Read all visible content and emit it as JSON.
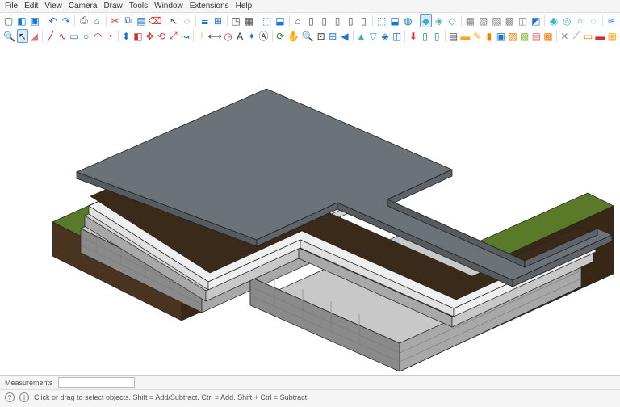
{
  "menu": {
    "items": [
      "File",
      "Edit",
      "View",
      "Camera",
      "Draw",
      "Tools",
      "Window",
      "Extensions",
      "Help"
    ]
  },
  "toolbar": {
    "row1": [
      {
        "n": "new-icon",
        "c": "#2e7d32",
        "g": "▢"
      },
      {
        "n": "open-icon",
        "c": "#1976d2",
        "g": "◧"
      },
      {
        "n": "save-icon",
        "c": "#1976d2",
        "g": "▣"
      },
      {
        "sep": true
      },
      {
        "n": "undo-icon",
        "c": "#1976d2",
        "g": "↶"
      },
      {
        "n": "redo-icon",
        "c": "#1976d2",
        "g": "↷"
      },
      {
        "sep": true
      },
      {
        "n": "print-icon",
        "c": "#555",
        "g": "⎙"
      },
      {
        "n": "model-icon",
        "c": "#1976d2",
        "g": "⌂"
      },
      {
        "sep": true
      },
      {
        "n": "cut-icon",
        "c": "#d32f2f",
        "g": "✂"
      },
      {
        "n": "copy-icon",
        "c": "#1976d2",
        "g": "⧉"
      },
      {
        "n": "paste-icon",
        "c": "#1976d2",
        "g": "▤"
      },
      {
        "n": "erase-icon",
        "c": "#d32f2f",
        "g": "⌫"
      },
      {
        "sep": true
      },
      {
        "n": "select-icon",
        "c": "#333",
        "g": "↖"
      },
      {
        "n": "lasso-icon",
        "c": "#1976d2",
        "g": "◌"
      },
      {
        "sep": true
      },
      {
        "n": "layers-icon",
        "c": "#1976d2",
        "g": "≣"
      },
      {
        "n": "tags-icon",
        "c": "#1976d2",
        "g": "⊞"
      },
      {
        "sep": true
      },
      {
        "n": "iso-icon",
        "c": "#555",
        "g": "◳"
      },
      {
        "n": "top-icon",
        "c": "#555",
        "g": "▦"
      },
      {
        "sep": true
      },
      {
        "n": "3dw-icon",
        "c": "#1976d2",
        "g": "⬚"
      },
      {
        "n": "ext-icon",
        "c": "#1976d2",
        "g": "⬓"
      },
      {
        "sep": true
      },
      {
        "n": "house-icon",
        "c": "#555",
        "g": "⌂"
      },
      {
        "n": "doc1-icon",
        "c": "#555",
        "g": "▯"
      },
      {
        "n": "doc2-icon",
        "c": "#555",
        "g": "▯"
      },
      {
        "n": "doc3-icon",
        "c": "#555",
        "g": "▯"
      },
      {
        "n": "doc4-icon",
        "c": "#555",
        "g": "▯"
      },
      {
        "n": "doc5-icon",
        "c": "#555",
        "g": "▯"
      },
      {
        "sep": true
      },
      {
        "n": "comp1-icon",
        "c": "#1976d2",
        "g": "⬚"
      },
      {
        "n": "comp2-icon",
        "c": "#1976d2",
        "g": "⬓"
      },
      {
        "n": "comp3-icon",
        "c": "#1976d2",
        "g": "◍"
      },
      {
        "sep": true
      },
      {
        "n": "solid1-icon",
        "c": "#3eb1c8",
        "g": "◆",
        "sel": true
      },
      {
        "n": "solid2-icon",
        "c": "#3eb1c8",
        "g": "◈"
      },
      {
        "n": "solid3-icon",
        "c": "#3eb1c8",
        "g": "◇"
      },
      {
        "sep": true
      },
      {
        "n": "box1-icon",
        "c": "#888",
        "g": "▦"
      },
      {
        "n": "box2-icon",
        "c": "#888",
        "g": "▧"
      },
      {
        "n": "box3-icon",
        "c": "#888",
        "g": "▨"
      },
      {
        "n": "box4-icon",
        "c": "#888",
        "g": "▩"
      },
      {
        "n": "box5-icon",
        "c": "#888",
        "g": "◫"
      },
      {
        "n": "box6-icon",
        "c": "#1976d2",
        "g": "◩"
      },
      {
        "sep": true
      },
      {
        "n": "sphere1-icon",
        "c": "#3eb1c8",
        "g": "◉"
      },
      {
        "n": "sphere2-icon",
        "c": "#3eb1c8",
        "g": "◎"
      },
      {
        "n": "sphere3-icon",
        "c": "#3eb1c8",
        "g": "○"
      },
      {
        "n": "sphere4-icon",
        "c": "#3eb1c8",
        "g": "◌"
      },
      {
        "sep": true
      },
      {
        "n": "stack-icon",
        "c": "#1976d2",
        "g": "≋"
      }
    ],
    "row2": [
      {
        "n": "zoom-icon",
        "c": "#333",
        "g": "🔍"
      },
      {
        "n": "select2-icon",
        "c": "#333",
        "g": "↖",
        "sel": true
      },
      {
        "n": "eraser-icon",
        "c": "#e57373",
        "g": "◢"
      },
      {
        "sep": true
      },
      {
        "n": "line-icon",
        "c": "#d32f2f",
        "g": "╱"
      },
      {
        "n": "freehand-icon",
        "c": "#d32f2f",
        "g": "∿"
      },
      {
        "n": "rect-icon",
        "c": "#1976d2",
        "g": "▭"
      },
      {
        "n": "circle-icon",
        "c": "#1976d2",
        "g": "○"
      },
      {
        "n": "arc-icon",
        "c": "#d32f2f",
        "g": "◠"
      },
      {
        "n": "pie-icon",
        "c": "#d32f2f",
        "g": "◔"
      },
      {
        "sep": true
      },
      {
        "n": "push-icon",
        "c": "#1976d2",
        "g": "⬍"
      },
      {
        "n": "offset-icon",
        "c": "#d32f2f",
        "g": "◧"
      },
      {
        "n": "move-icon",
        "c": "#d32f2f",
        "g": "✥"
      },
      {
        "n": "rotate-icon",
        "c": "#d32f2f",
        "g": "⟲"
      },
      {
        "n": "scale-icon",
        "c": "#d32f2f",
        "g": "⤢"
      },
      {
        "n": "followme-icon",
        "c": "#1976d2",
        "g": "↝"
      },
      {
        "sep": true
      },
      {
        "n": "tape-icon",
        "c": "#f9a825",
        "g": "⟊"
      },
      {
        "n": "dimension-icon",
        "c": "#333",
        "g": "⟷"
      },
      {
        "n": "protractor-icon",
        "c": "#d32f2f",
        "g": "◷"
      },
      {
        "n": "text-icon",
        "c": "#333",
        "g": "A"
      },
      {
        "n": "axes-icon",
        "c": "#1976d2",
        "g": "✦"
      },
      {
        "n": "3dtext-icon",
        "c": "#333",
        "g": "Ⓐ"
      },
      {
        "sep": true
      },
      {
        "n": "orbit-icon",
        "c": "#2e7d32",
        "g": "⟳"
      },
      {
        "n": "pan-icon",
        "c": "#d32f2f",
        "g": "✋"
      },
      {
        "n": "zoom2-icon",
        "c": "#333",
        "g": "🔍"
      },
      {
        "n": "zoomwin-icon",
        "c": "#333",
        "g": "⊡"
      },
      {
        "n": "zoomext-icon",
        "c": "#1976d2",
        "g": "⊞"
      },
      {
        "n": "prev-icon",
        "c": "#1976d2",
        "g": "◀"
      },
      {
        "sep": true
      },
      {
        "n": "position-icon",
        "c": "#3eb1c8",
        "g": "▲"
      },
      {
        "n": "walk-icon",
        "c": "#3eb1c8",
        "g": "▽"
      },
      {
        "n": "look-icon",
        "c": "#1976d2",
        "g": "◈"
      },
      {
        "n": "section-icon",
        "c": "#1976d2",
        "g": "◫"
      },
      {
        "sep": true
      },
      {
        "n": "getmodels-icon",
        "c": "#d32f2f",
        "g": "⬇"
      },
      {
        "n": "share-icon",
        "c": "#1976d2",
        "g": "▯"
      },
      {
        "n": "upload-icon",
        "c": "#1976d2",
        "g": "▯"
      },
      {
        "sep": true
      },
      {
        "n": "outliner-icon",
        "c": "#555",
        "g": "▤"
      },
      {
        "n": "ruler-icon",
        "c": "#f9a825",
        "g": "▬"
      },
      {
        "n": "pencil2-icon",
        "c": "#f9a825",
        "g": "✎"
      },
      {
        "n": "paint2-icon",
        "c": "#f57c00",
        "g": "▮"
      },
      {
        "n": "comp-icon",
        "c": "#1976d2",
        "g": "▣"
      },
      {
        "n": "mat-icon",
        "c": "#f57c00",
        "g": "▨"
      },
      {
        "n": "styles-icon",
        "c": "#8bc34a",
        "g": "▩"
      },
      {
        "n": "layers2-icon",
        "c": "#e57373",
        "g": "▤"
      },
      {
        "n": "scene-icon",
        "c": "#f57c00",
        "g": "▦"
      },
      {
        "sep": true
      },
      {
        "n": "ext1-icon",
        "c": "#888",
        "g": "✕"
      },
      {
        "n": "ext2-icon",
        "c": "#888",
        "g": "⟋"
      },
      {
        "n": "ext3-icon",
        "c": "#f57c00",
        "g": "▭"
      },
      {
        "n": "ext4-icon",
        "c": "#d32f2f",
        "g": "▬"
      },
      {
        "n": "ext5-icon",
        "c": "#f9a825",
        "g": "▦"
      }
    ]
  },
  "status": {
    "measurements_label": "Measurements",
    "measurements_value": "",
    "hint": "Click or drag to select objects. Shift = Add/Subtract. Ctrl = Add. Shift + Ctrl = Subtract."
  },
  "model": {
    "description": "exploded-floor-assembly",
    "colors": {
      "top_slab": "#6b7278",
      "top_slab_side": "#565b60",
      "mesh": "#3a2a1a",
      "insulation": "#f0f0f0",
      "conc_light": "#c8c8c8",
      "conc_med": "#a8a8a8",
      "conc_dark": "#8a8a8a",
      "footing": "#d5d5d5",
      "grass": "#5a7a2a",
      "soil_side": "#3a2817",
      "soil_front": "#4a3420",
      "outline": "#222"
    }
  }
}
